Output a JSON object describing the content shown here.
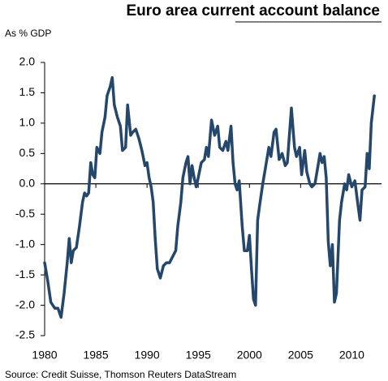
{
  "chart_data": {
    "type": "line",
    "title": "Euro area current account balance",
    "y_label": "As % GDP",
    "source": "Source: Credit Suisse, Thomson Reuters DataStream",
    "color": "#24476b",
    "xlim": [
      1980,
      2012.9
    ],
    "xticks": [
      1980,
      1985,
      1990,
      1995,
      2000,
      2005,
      2010
    ],
    "ylim": [
      -2.5,
      2.0
    ],
    "yticks": [
      {
        "value": 2.0,
        "label": "2.0"
      },
      1.5,
      {
        "value": 1.0,
        "label": "1.0"
      },
      0.5,
      {
        "value": 0.0,
        "label": "0.0"
      },
      -0.5,
      {
        "value": -1.0,
        "label": "-1.0"
      },
      -1.5,
      {
        "value": -2.0,
        "label": "-2.0"
      },
      -2.5
    ],
    "x": [
      1980.0,
      1980.3,
      1980.6,
      1981.0,
      1981.3,
      1981.6,
      1981.9,
      1982.2,
      1982.4,
      1982.6,
      1982.8,
      1983.1,
      1983.4,
      1983.7,
      1983.9,
      1984.1,
      1984.3,
      1984.5,
      1984.7,
      1984.9,
      1985.1,
      1985.4,
      1985.6,
      1985.9,
      1986.1,
      1986.4,
      1986.6,
      1986.8,
      1987.1,
      1987.4,
      1987.6,
      1987.9,
      1988.1,
      1988.4,
      1988.6,
      1988.9,
      1989.2,
      1989.5,
      1989.8,
      1990.0,
      1990.2,
      1990.4,
      1990.6,
      1990.8,
      1991.0,
      1991.3,
      1991.6,
      1991.9,
      1992.2,
      1992.5,
      1992.8,
      1993.0,
      1993.3,
      1993.5,
      1993.8,
      1994.0,
      1994.2,
      1994.4,
      1994.6,
      1994.8,
      1995.0,
      1995.3,
      1995.6,
      1995.8,
      1996.0,
      1996.3,
      1996.6,
      1996.9,
      1997.1,
      1997.4,
      1997.7,
      1997.9,
      1998.2,
      1998.4,
      1998.6,
      1998.8,
      1999.0,
      1999.3,
      1999.5,
      1999.8,
      2000.0,
      2000.2,
      2000.4,
      2000.6,
      2000.8,
      2001.0,
      2001.3,
      2001.6,
      2001.9,
      2002.1,
      2002.4,
      2002.6,
      2002.9,
      2003.2,
      2003.5,
      2003.7,
      2003.9,
      2004.1,
      2004.4,
      2004.6,
      2004.9,
      2005.1,
      2005.4,
      2005.6,
      2005.9,
      2006.1,
      2006.4,
      2006.7,
      2006.9,
      2007.1,
      2007.3,
      2007.5,
      2007.7,
      2007.9,
      2008.1,
      2008.3,
      2008.5,
      2008.8,
      2009.0,
      2009.3,
      2009.5,
      2009.7,
      2010.0,
      2010.3,
      2010.6,
      2010.8,
      2011.0,
      2011.3,
      2011.5,
      2011.7,
      2011.9,
      2012.2
    ],
    "values": [
      -1.3,
      -1.6,
      -1.95,
      -2.05,
      -2.05,
      -2.2,
      -1.8,
      -1.3,
      -0.9,
      -1.3,
      -1.1,
      -1.05,
      -0.7,
      -0.3,
      -0.15,
      -0.2,
      -0.15,
      0.35,
      0.15,
      0.1,
      0.6,
      0.5,
      0.85,
      1.1,
      1.45,
      1.6,
      1.75,
      1.3,
      1.1,
      0.95,
      0.55,
      0.6,
      1.3,
      0.8,
      0.85,
      0.9,
      0.75,
      0.55,
      0.3,
      0.35,
      0.1,
      -0.05,
      -0.3,
      -0.9,
      -1.4,
      -1.55,
      -1.35,
      -1.3,
      -1.3,
      -1.2,
      -1.1,
      -0.7,
      -0.3,
      0.1,
      0.35,
      0.45,
      0.0,
      0.3,
      0.1,
      -0.05,
      0.1,
      0.35,
      0.4,
      0.6,
      0.45,
      1.05,
      0.8,
      0.95,
      0.6,
      0.55,
      0.7,
      0.55,
      0.95,
      0.35,
      0.0,
      -0.1,
      0.05,
      -0.7,
      -1.1,
      -1.1,
      -0.85,
      -1.4,
      -1.9,
      -2.0,
      -0.6,
      -0.35,
      0.0,
      0.3,
      0.6,
      0.45,
      0.85,
      0.9,
      0.4,
      0.5,
      0.3,
      0.35,
      0.8,
      1.25,
      0.6,
      0.45,
      0.6,
      0.15,
      0.55,
      0.2,
      0.0,
      -0.05,
      0.0,
      0.3,
      0.5,
      0.35,
      0.45,
      0.1,
      -0.95,
      -1.35,
      -1.0,
      -1.95,
      -1.8,
      -0.6,
      -0.3,
      0.0,
      -0.1,
      0.15,
      -0.05,
      0.05,
      -0.35,
      -0.6,
      -0.1,
      -0.05,
      0.5,
      0.25,
      1.0,
      1.45
    ]
  }
}
